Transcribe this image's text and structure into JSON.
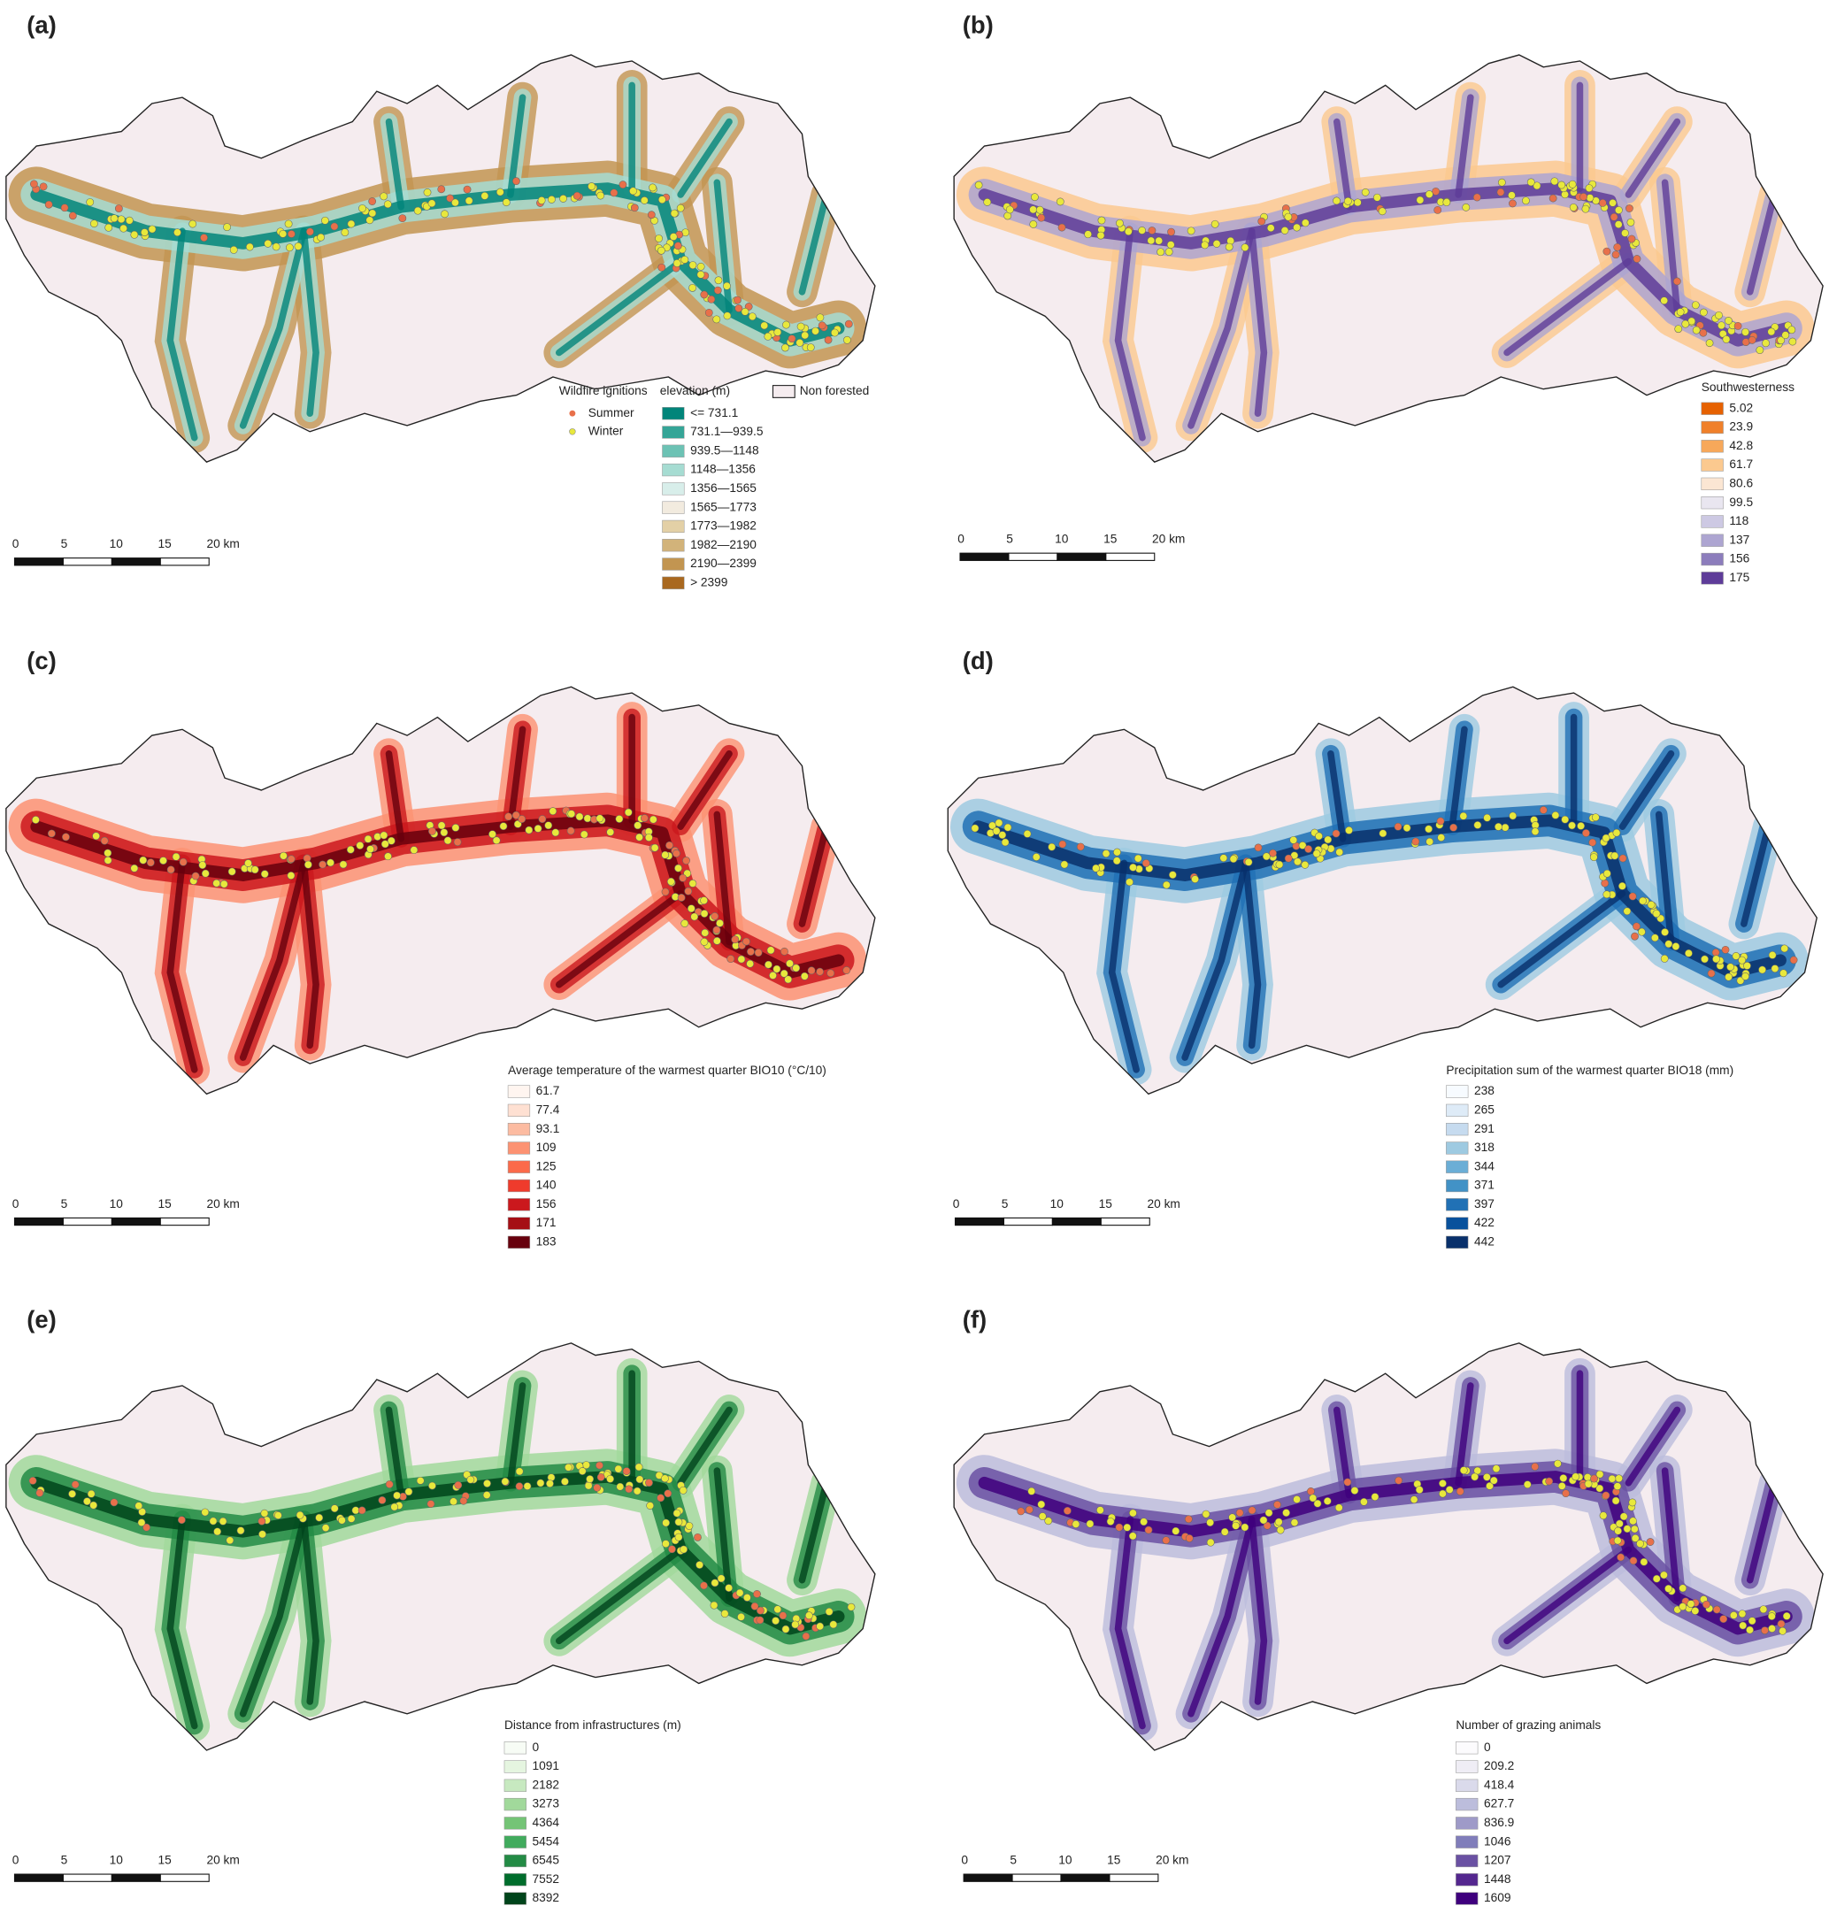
{
  "panels": [
    {
      "label": "(a)",
      "ignitions": {
        "title": "Wildfire ignitions",
        "summer": "Summer",
        "winter": "Winter"
      },
      "non_forested": "Non forested",
      "legend": {
        "title": "elevation (m)",
        "items": [
          {
            "label": "<= 731.1",
            "color": "#01857a"
          },
          {
            "label": "731.1—939.5",
            "color": "#35a597"
          },
          {
            "label": "939.5—1148",
            "color": "#6cc2b4"
          },
          {
            "label": "1148—1356",
            "color": "#a6dcd2"
          },
          {
            "label": "1356—1565",
            "color": "#d8eeea"
          },
          {
            "label": "1565—1773",
            "color": "#f2ebdf"
          },
          {
            "label": "1773—1982",
            "color": "#e3d0a6"
          },
          {
            "label": "1982—2190",
            "color": "#d2b37a"
          },
          {
            "label": "2190—2399",
            "color": "#c29551"
          },
          {
            "label": "> 2399",
            "color": "#a9681f"
          }
        ]
      },
      "scale_bar": [
        "0",
        "5",
        "10",
        "15",
        "20 km"
      ]
    },
    {
      "label": "(b)",
      "legend": {
        "title": "Southwesterness",
        "items": [
          {
            "label": "5.02",
            "color": "#e66101"
          },
          {
            "label": "23.9",
            "color": "#f0802a"
          },
          {
            "label": "42.8",
            "color": "#f7a85a"
          },
          {
            "label": "61.7",
            "color": "#fbc98f"
          },
          {
            "label": "80.6",
            "color": "#fbe6d3"
          },
          {
            "label": "99.5",
            "color": "#e9e6f0"
          },
          {
            "label": "118",
            "color": "#cdc9e3"
          },
          {
            "label": "137",
            "color": "#ada5d1"
          },
          {
            "label": "156",
            "color": "#8c7dbc"
          },
          {
            "label": "175",
            "color": "#5e3c99"
          }
        ]
      },
      "scale_bar": [
        "0",
        "5",
        "10",
        "15",
        "20 km"
      ]
    },
    {
      "label": "(c)",
      "legend": {
        "title": "Average temperature of the warmest quarter BIO10 (°C/10)",
        "items": [
          {
            "label": "61.7",
            "color": "#fff5f0"
          },
          {
            "label": "77.4",
            "color": "#fee0d2"
          },
          {
            "label": "93.1",
            "color": "#fcbba1"
          },
          {
            "label": "109",
            "color": "#fc9272"
          },
          {
            "label": "125",
            "color": "#fb6a4a"
          },
          {
            "label": "140",
            "color": "#ef3b2c"
          },
          {
            "label": "156",
            "color": "#cb181d"
          },
          {
            "label": "171",
            "color": "#a50f15"
          },
          {
            "label": "183",
            "color": "#67000d"
          }
        ]
      },
      "scale_bar": [
        "0",
        "5",
        "10",
        "15",
        "20 km"
      ]
    },
    {
      "label": "(d)",
      "legend": {
        "title": "Precipitation sum of the warmest quarter BIO18 (mm)",
        "items": [
          {
            "label": "238",
            "color": "#f7fbff"
          },
          {
            "label": "265",
            "color": "#deebf7"
          },
          {
            "label": "291",
            "color": "#c6dbef"
          },
          {
            "label": "318",
            "color": "#9ecae1"
          },
          {
            "label": "344",
            "color": "#6baed6"
          },
          {
            "label": "371",
            "color": "#4292c6"
          },
          {
            "label": "397",
            "color": "#2171b5"
          },
          {
            "label": "422",
            "color": "#08519c"
          },
          {
            "label": "442",
            "color": "#08306b"
          }
        ]
      },
      "scale_bar": [
        "0",
        "5",
        "10",
        "15",
        "20 km"
      ]
    },
    {
      "label": "(e)",
      "legend": {
        "title": "Distance from infrastructures (m)",
        "items": [
          {
            "label": "0",
            "color": "#f7fcf5"
          },
          {
            "label": "1091",
            "color": "#e5f5e0"
          },
          {
            "label": "2182",
            "color": "#c7e9c0"
          },
          {
            "label": "3273",
            "color": "#a1d99b"
          },
          {
            "label": "4364",
            "color": "#74c476"
          },
          {
            "label": "5454",
            "color": "#41ab5d"
          },
          {
            "label": "6545",
            "color": "#238b45"
          },
          {
            "label": "7552",
            "color": "#006d2c"
          },
          {
            "label": "8392",
            "color": "#00441b"
          }
        ]
      },
      "scale_bar": [
        "0",
        "5",
        "10",
        "15",
        "20 km"
      ]
    },
    {
      "label": "(f)",
      "legend": {
        "title": "Number of grazing animals",
        "items": [
          {
            "label": "0",
            "color": "#fcfbfd"
          },
          {
            "label": "209.2",
            "color": "#efedf5"
          },
          {
            "label": "418.4",
            "color": "#dadaeb"
          },
          {
            "label": "627.7",
            "color": "#bcbddc"
          },
          {
            "label": "836.9",
            "color": "#9e9ac8"
          },
          {
            "label": "1046",
            "color": "#807dba"
          },
          {
            "label": "1207",
            "color": "#6a51a3"
          },
          {
            "label": "1448",
            "color": "#54278f"
          },
          {
            "label": "1609",
            "color": "#3f007d"
          }
        ]
      },
      "scale_bar": [
        "0",
        "5",
        "10",
        "15",
        "20 km"
      ]
    }
  ]
}
